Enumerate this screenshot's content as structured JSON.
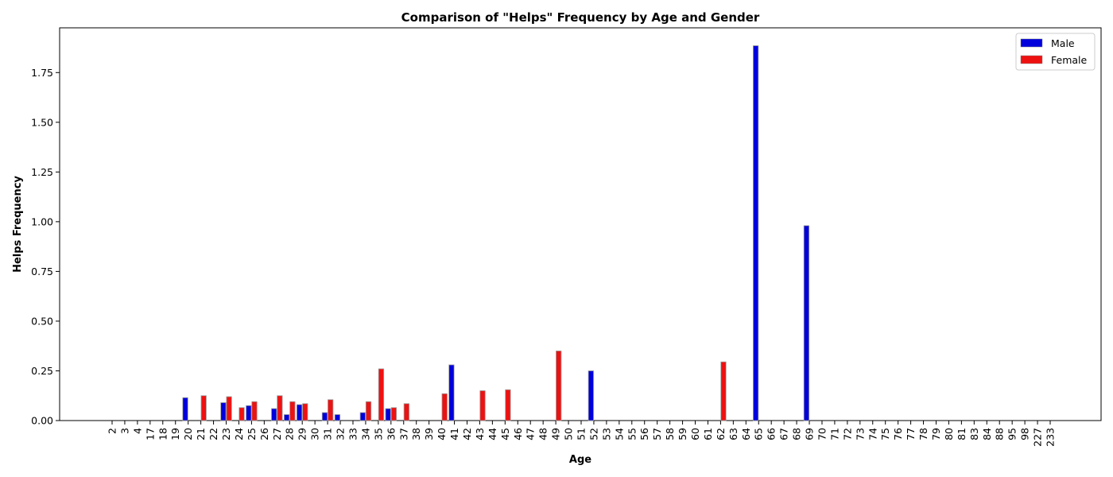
{
  "chart_data": {
    "type": "bar",
    "title": "Comparison of \"Helps\" Frequency by Age and Gender",
    "xlabel": "Age",
    "ylabel": "Helps Frequency",
    "ylim": [
      0,
      1.975
    ],
    "yticks": [
      "0.00",
      "0.25",
      "0.50",
      "0.75",
      "1.00",
      "1.25",
      "1.50",
      "1.75"
    ],
    "legend_position": "top-right",
    "grid": false,
    "categories": [
      "2",
      "3",
      "4",
      "17",
      "18",
      "19",
      "20",
      "21",
      "22",
      "23",
      "24",
      "25",
      "26",
      "27",
      "28",
      "29",
      "30",
      "31",
      "32",
      "33",
      "34",
      "35",
      "36",
      "37",
      "38",
      "39",
      "40",
      "41",
      "42",
      "43",
      "44",
      "45",
      "46",
      "47",
      "48",
      "49",
      "50",
      "51",
      "52",
      "53",
      "54",
      "55",
      "56",
      "57",
      "58",
      "59",
      "60",
      "61",
      "62",
      "63",
      "64",
      "65",
      "66",
      "67",
      "68",
      "69",
      "70",
      "71",
      "72",
      "73",
      "74",
      "75",
      "76",
      "77",
      "78",
      "79",
      "80",
      "81",
      "83",
      "84",
      "88",
      "95",
      "98",
      "227",
      "233"
    ],
    "series": [
      {
        "name": "Male",
        "color": "#0000dd",
        "values": [
          0,
          0,
          0,
          0,
          0,
          0,
          0.115,
          0,
          0,
          0.09,
          0,
          0.075,
          0,
          0.06,
          0.03,
          0.08,
          0,
          0.04,
          0.03,
          0,
          0.04,
          0,
          0.06,
          0,
          0,
          0,
          0,
          0.28,
          0,
          0,
          0,
          0,
          0,
          0,
          0,
          0,
          0,
          0,
          0.25,
          0,
          0,
          0,
          0,
          0,
          0,
          0,
          0,
          0,
          0,
          0,
          0,
          1.885,
          0,
          0,
          0,
          0.98,
          0,
          0,
          0,
          0,
          0,
          0,
          0,
          0,
          0,
          0,
          0,
          0,
          0,
          0,
          0,
          0,
          0,
          0,
          0
        ]
      },
      {
        "name": "Female",
        "color": "#ee1111",
        "values": [
          0,
          0,
          0,
          0,
          0,
          0,
          0,
          0.125,
          0,
          0.12,
          0.065,
          0.095,
          0,
          0.125,
          0.095,
          0.085,
          0,
          0.105,
          0,
          0,
          0.095,
          0.26,
          0.065,
          0.085,
          0,
          0,
          0.135,
          0,
          0,
          0.15,
          0,
          0.155,
          0,
          0,
          0,
          0.35,
          0,
          0,
          0,
          0,
          0,
          0,
          0,
          0,
          0,
          0,
          0,
          0,
          0.295,
          0,
          0,
          0,
          0,
          0,
          0,
          0,
          0,
          0,
          0,
          0,
          0,
          0,
          0,
          0,
          0,
          0,
          0,
          0,
          0,
          0,
          0,
          0,
          0,
          0,
          0
        ]
      }
    ]
  }
}
